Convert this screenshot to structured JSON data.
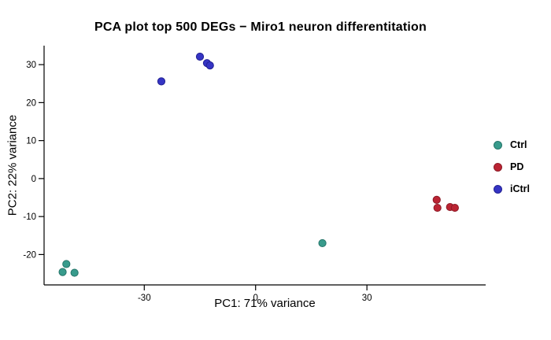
{
  "chart_data": {
    "type": "scatter",
    "title": "PCA plot top 500 DEGs − Miro1 neuron differentitation",
    "xlabel": "PC1: 71% variance",
    "ylabel": "PC2: 22% variance",
    "xlim": [
      -57,
      62
    ],
    "ylim": [
      -28,
      35
    ],
    "xticks": [
      -30,
      0,
      30
    ],
    "yticks": [
      -20,
      -10,
      0,
      10,
      20,
      30
    ],
    "grid": false,
    "legend_position": "right",
    "axis_color": "#000000",
    "series": [
      {
        "name": "Ctrl",
        "color": "#389B8C",
        "edge": "#26756A",
        "points": [
          [
            -51.0,
            -22.5
          ],
          [
            -52.0,
            -24.6
          ],
          [
            -48.8,
            -24.8
          ],
          [
            18.0,
            -17.0
          ]
        ]
      },
      {
        "name": "PD",
        "color": "#BB2433",
        "edge": "#8C1A26",
        "points": [
          [
            48.8,
            -5.6
          ],
          [
            49.0,
            -7.7
          ],
          [
            52.4,
            -7.5
          ],
          [
            53.7,
            -7.7
          ]
        ]
      },
      {
        "name": "iCtrl",
        "color": "#3534C4",
        "edge": "#232293",
        "points": [
          [
            -25.4,
            25.6
          ],
          [
            -15.0,
            32.1
          ],
          [
            -13.1,
            30.4
          ],
          [
            -12.3,
            29.8
          ]
        ]
      }
    ]
  }
}
